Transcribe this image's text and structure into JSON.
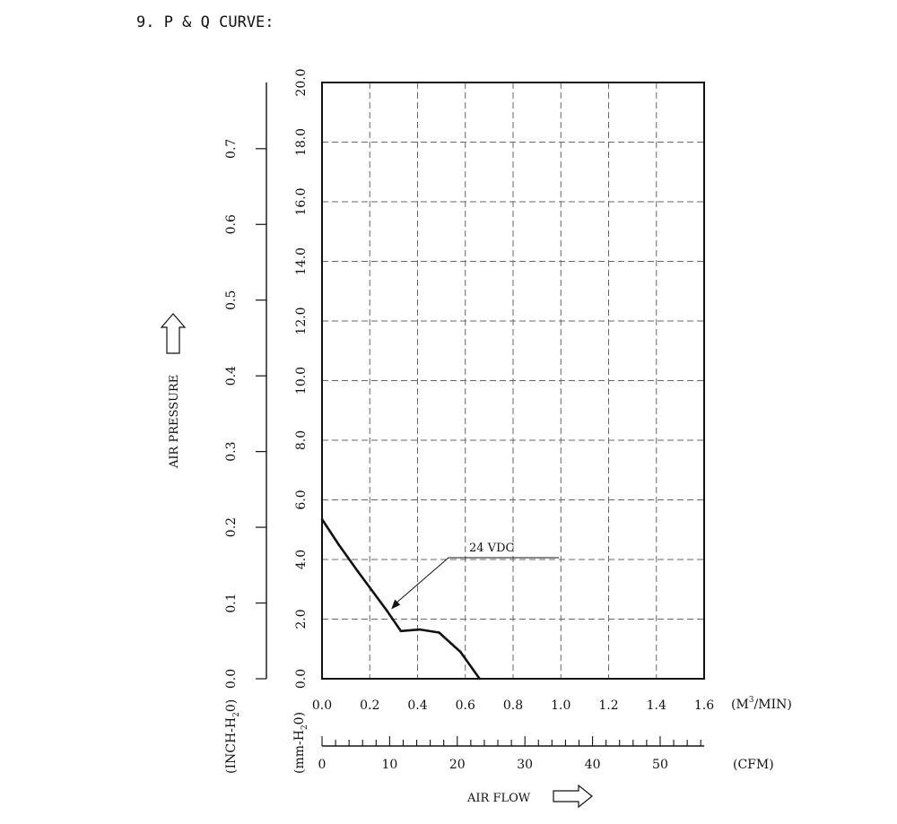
{
  "title": "9. P & Q CURVE:",
  "left_axis": {
    "label": "AIR PRESSURE",
    "unit": "(INCH-H",
    "unit_sub": "2",
    "unit_end": "0)",
    "ticks": [
      "0.0",
      "0.1",
      "0.2",
      "0.3",
      "0.4",
      "0.5",
      "0.6",
      "0.7"
    ]
  },
  "mm_axis": {
    "unit": "(mm-H",
    "unit_sub": "2",
    "unit_end": "0)"
  },
  "x_axis": {
    "unit_pre": "(M",
    "unit_sup": "3",
    "unit_post": "/MIN)",
    "cfm_unit": "(CFM)",
    "cfm_ticks": [
      "0",
      "10",
      "20",
      "30",
      "40",
      "50"
    ],
    "label": "AIR FLOW"
  },
  "chart_data": {
    "type": "line",
    "title": "9. P & Q CURVE:",
    "xlabel": "AIR FLOW",
    "ylabel": "AIR PRESSURE",
    "x_unit": "M3/MIN",
    "y_unit": "mm-H2O",
    "xlim": [
      0.0,
      1.6
    ],
    "ylim": [
      0.0,
      20.0
    ],
    "x_ticks": [
      "0.0",
      "0.2",
      "0.4",
      "0.6",
      "0.8",
      "1.0",
      "1.2",
      "1.4",
      "1.6"
    ],
    "y_ticks": [
      "0.0",
      "2.0",
      "4.0",
      "6.0",
      "8.0",
      "10.0",
      "12.0",
      "14.0",
      "16.0",
      "18.0",
      "20.0"
    ],
    "grid": true,
    "series": [
      {
        "name": "24 VDC",
        "x": [
          0.0,
          0.07,
          0.15,
          0.27,
          0.33,
          0.41,
          0.49,
          0.58,
          0.66
        ],
        "y": [
          5.35,
          4.5,
          3.6,
          2.3,
          1.6,
          1.65,
          1.55,
          0.9,
          0.0
        ]
      }
    ],
    "annotation": {
      "text": "24 VDC",
      "x": 0.29,
      "y": 2.3
    }
  }
}
